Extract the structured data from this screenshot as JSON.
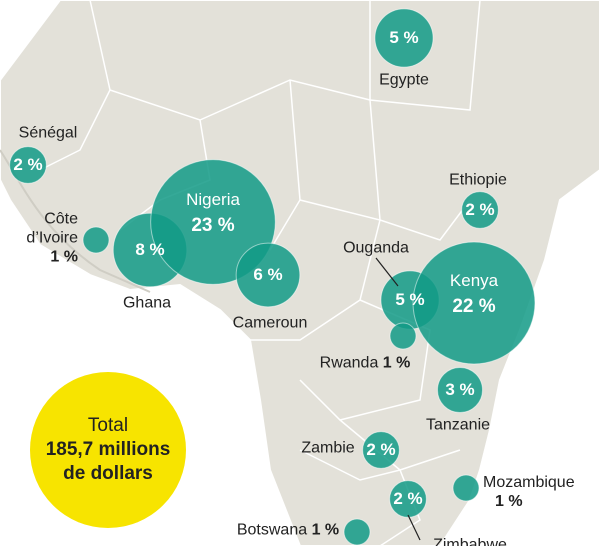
{
  "color": "#129a86",
  "bubbles": [
    {
      "name": "Egypte",
      "value": 5,
      "value_label": "5 %"
    },
    {
      "name": "Sénégal",
      "value": 2,
      "value_label": "2 %"
    },
    {
      "name": "Côte d’Ivoire",
      "value": 1,
      "value_label": "1 %"
    },
    {
      "name": "Ghana",
      "value": 8,
      "value_label": "8 %"
    },
    {
      "name": "Nigeria",
      "value": 23,
      "value_label": "23 %"
    },
    {
      "name": "Cameroun",
      "value": 6,
      "value_label": "6 %"
    },
    {
      "name": "Ethiopie",
      "value": 2,
      "value_label": "2 %"
    },
    {
      "name": "Ouganda",
      "value": 5,
      "value_label": "5 %"
    },
    {
      "name": "Kenya",
      "value": 22,
      "value_label": "22 %"
    },
    {
      "name": "Rwanda",
      "value": 1,
      "value_label": "1 %"
    },
    {
      "name": "Tanzanie",
      "value": 3,
      "value_label": "3 %"
    },
    {
      "name": "Zambie",
      "value": 2,
      "value_label": "2 %"
    },
    {
      "name": "Mozambique",
      "value": 1,
      "value_label": "1 %"
    },
    {
      "name": "Zimbabwe",
      "value": 2,
      "value_label": "2 %"
    },
    {
      "name": "Botswana",
      "value": 1,
      "value_label": "1 %"
    }
  ],
  "total": {
    "label": "Total",
    "amount": "185,7 millions",
    "unit": "de dollars"
  }
}
